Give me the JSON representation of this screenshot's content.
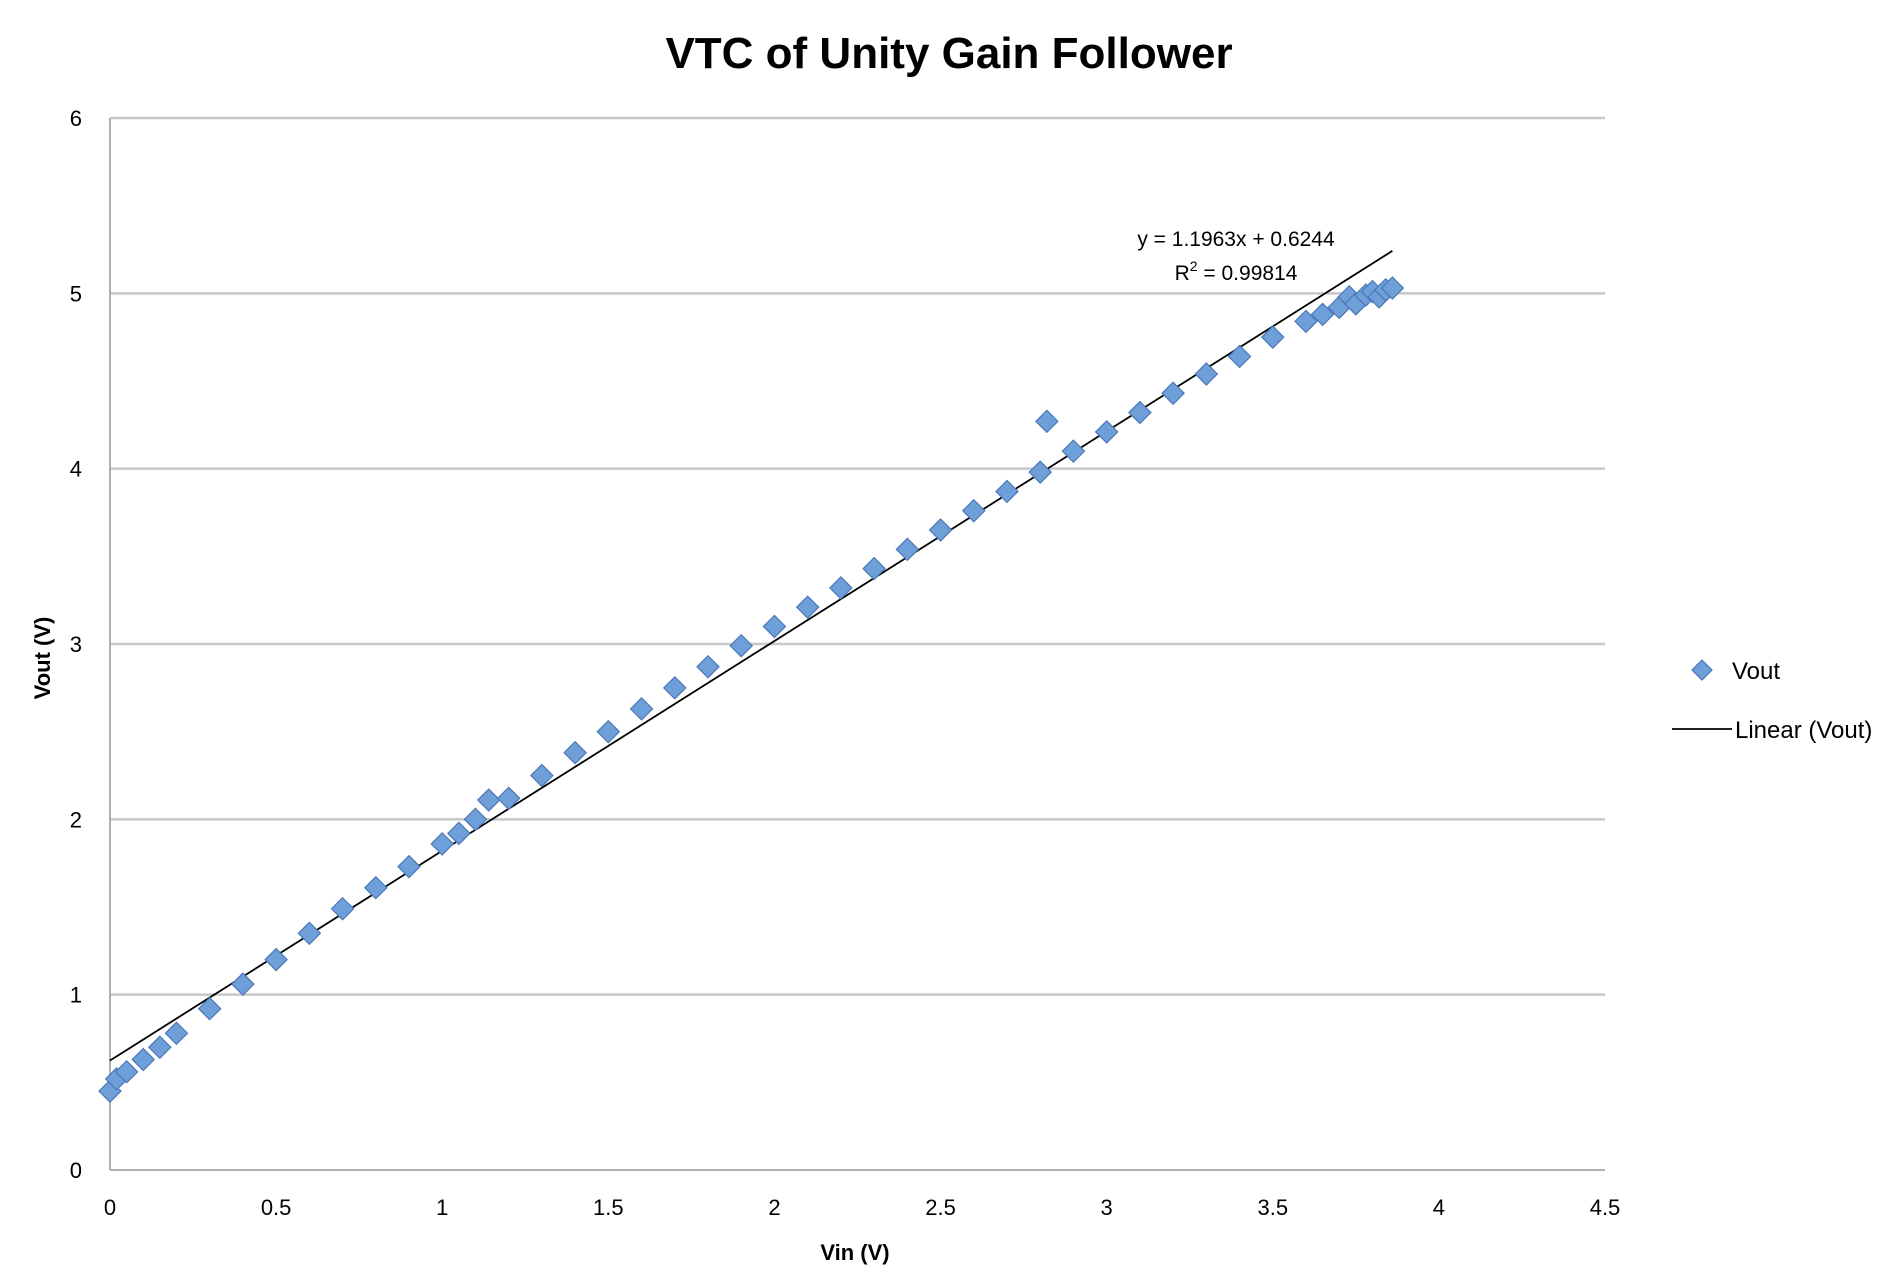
{
  "chart_data": {
    "type": "scatter",
    "title": "VTC of Unity Gain Follower",
    "xlabel": "Vin (V)",
    "ylabel": "Vout (V)",
    "xlim": [
      0,
      4.5
    ],
    "ylim": [
      0,
      6
    ],
    "x_ticks": [
      "0",
      "0.5",
      "1",
      "1.5",
      "2",
      "2.5",
      "3",
      "3.5",
      "4",
      "4.5"
    ],
    "y_ticks": [
      "0",
      "1",
      "2",
      "3",
      "4",
      "5",
      "6"
    ],
    "grid": "horizontal",
    "legend_position": "right",
    "series": [
      {
        "name": "Vout",
        "marker": "diamond",
        "color": "#6f9fd8",
        "x": [
          0.0,
          0.02,
          0.05,
          0.1,
          0.15,
          0.2,
          0.3,
          0.4,
          0.5,
          0.6,
          0.7,
          0.8,
          0.9,
          1.0,
          1.05,
          1.1,
          1.14,
          1.2,
          1.3,
          1.4,
          1.5,
          1.6,
          1.7,
          1.8,
          1.9,
          2.0,
          2.1,
          2.2,
          2.3,
          2.4,
          2.5,
          2.6,
          2.7,
          2.8,
          2.82,
          2.9,
          3.0,
          3.1,
          3.2,
          3.3,
          3.4,
          3.5,
          3.6,
          3.65,
          3.7,
          3.73,
          3.75,
          3.78,
          3.8,
          3.82,
          3.84,
          3.86
        ],
        "y": [
          0.45,
          0.52,
          0.56,
          0.63,
          0.7,
          0.78,
          0.92,
          1.06,
          1.2,
          1.35,
          1.49,
          1.61,
          1.73,
          1.86,
          1.92,
          2.0,
          2.11,
          2.12,
          2.25,
          2.38,
          2.5,
          2.63,
          2.75,
          2.87,
          2.99,
          3.1,
          3.21,
          3.32,
          3.43,
          3.54,
          3.65,
          3.76,
          3.87,
          3.98,
          4.27,
          4.1,
          4.21,
          4.32,
          4.43,
          4.54,
          4.64,
          4.75,
          4.84,
          4.88,
          4.92,
          4.98,
          4.94,
          4.99,
          5.01,
          4.98,
          5.02,
          5.03
        ]
      }
    ],
    "trendline": {
      "name": "Linear (Vout)",
      "slope": 1.1963,
      "intercept": 0.6244,
      "x_range": [
        0,
        3.86
      ],
      "equation_label": "y = 1.1963x + 0.6244",
      "r2_prefix": "R",
      "r2_sup": "2",
      "r2_suffix": " = 0.99814"
    }
  }
}
